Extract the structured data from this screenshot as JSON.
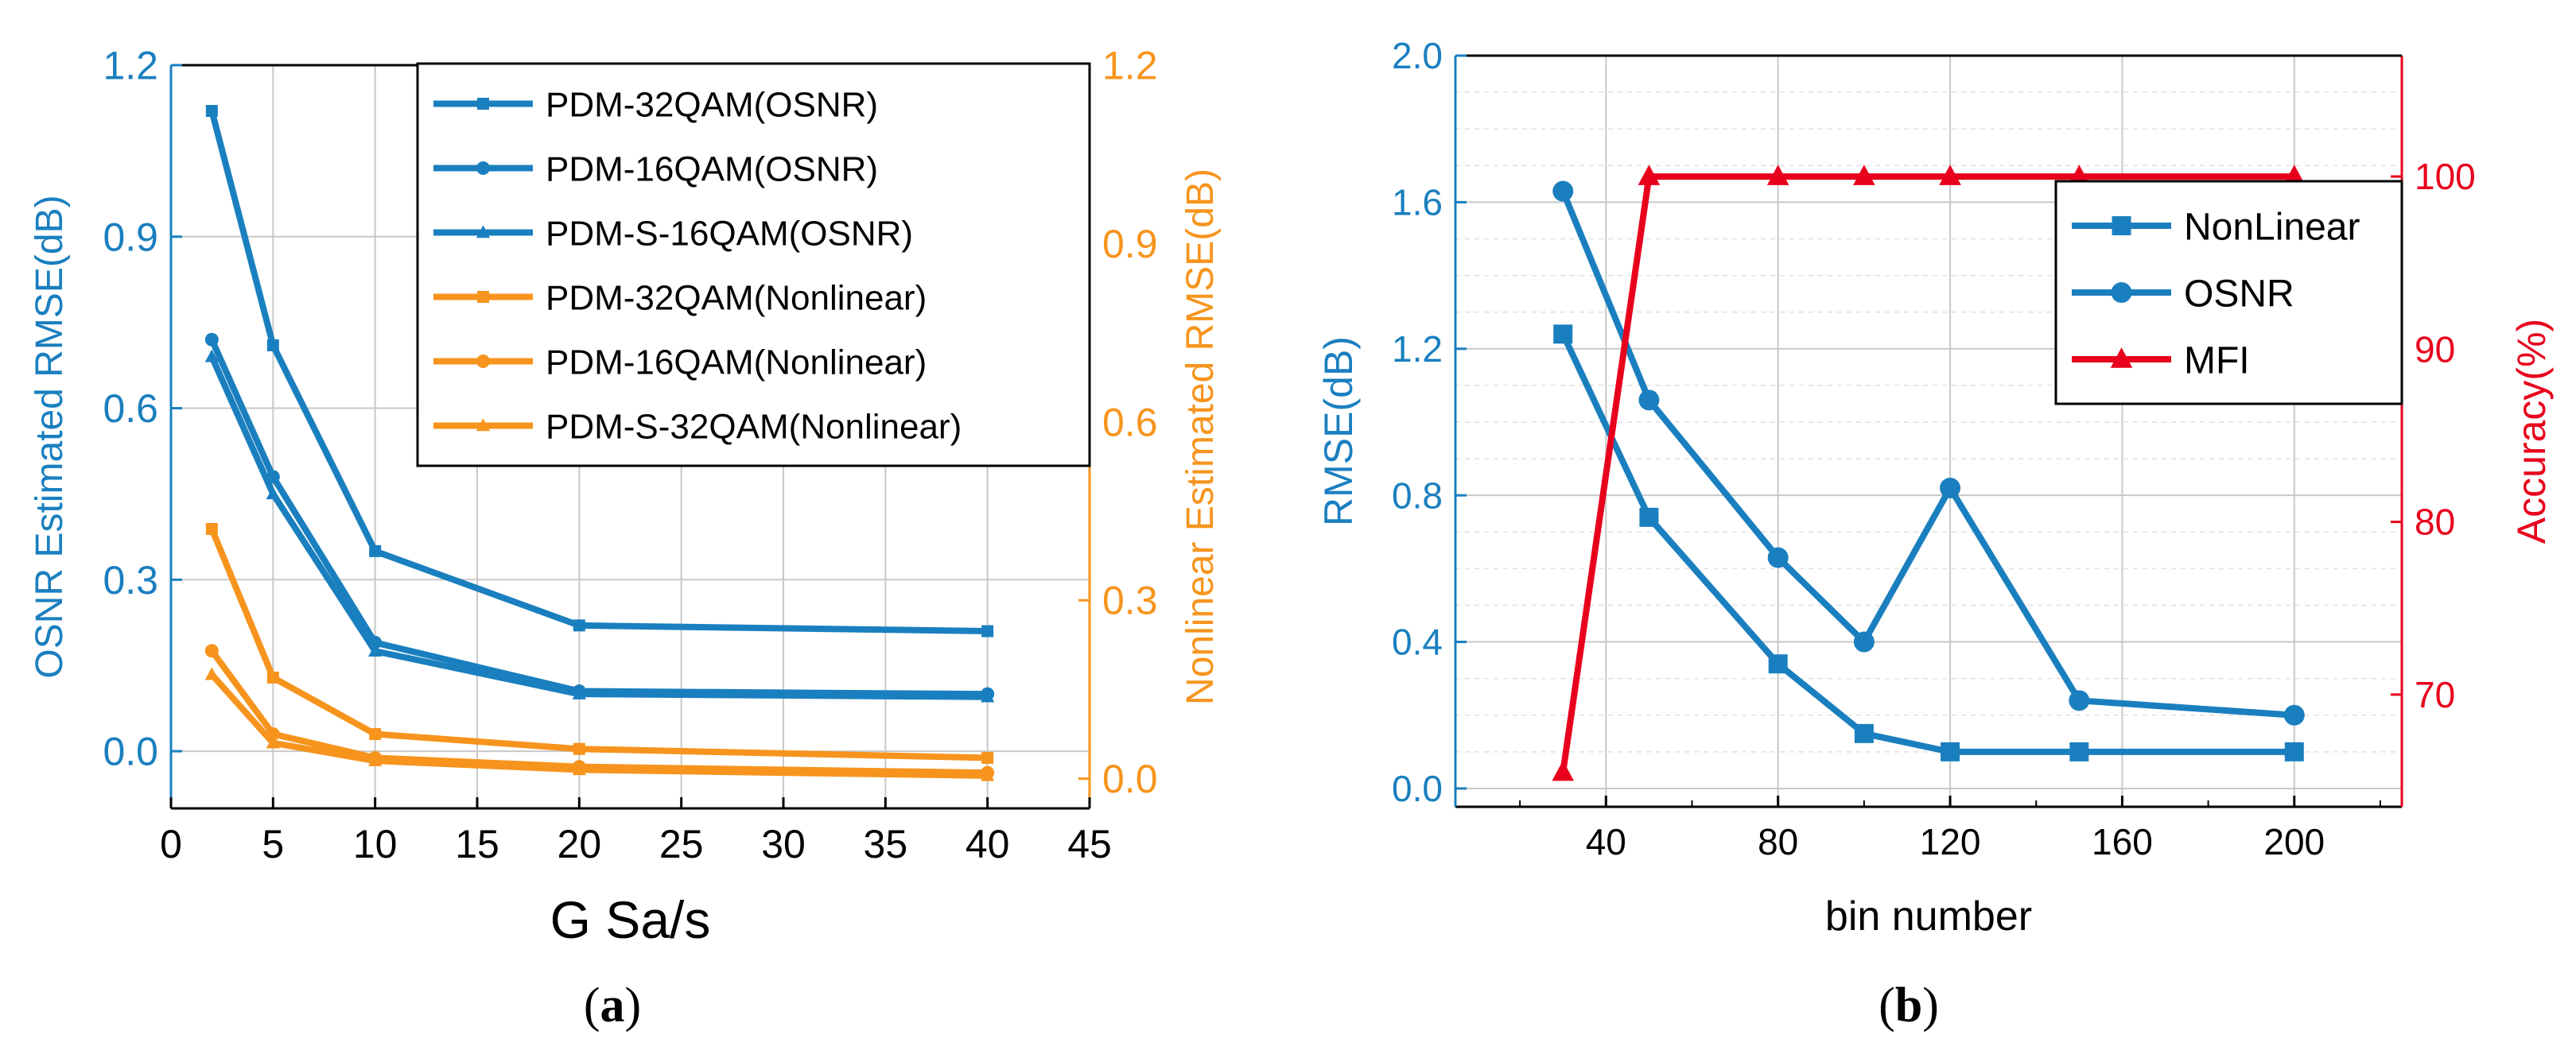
{
  "colors": {
    "osnr_blue": "#1a7fbf",
    "nonlinear_orange": "#f7941d",
    "mfi_red": "#e8001c",
    "axis_black": "#000000",
    "grid_gray": "#c8c8c8"
  },
  "panels": {
    "a": {
      "label": "a"
    },
    "b": {
      "label": "b"
    }
  },
  "chart_data": [
    {
      "id": "a",
      "type": "line",
      "xlabel": "G Sa/s",
      "ylabel_left": "OSNR Estimated RMSE(dB)",
      "ylabel_right": "Nonlinear Estimated RMSE(dB)",
      "xlim": [
        0,
        45
      ],
      "ylim_left": [
        -0.1,
        1.2
      ],
      "ylim_right": [
        -0.05,
        1.2
      ],
      "xticks": [
        "0",
        "5",
        "10",
        "15",
        "20",
        "25",
        "30",
        "35",
        "40",
        "45"
      ],
      "yticks_left": [
        "0.0",
        "0.3",
        "0.6",
        "0.9",
        "1.2"
      ],
      "yticks_right": [
        "0.0",
        "0.3",
        "0.6",
        "0.9",
        "1.2"
      ],
      "grid": true,
      "legend_position": "top-right",
      "x": [
        2,
        5,
        10,
        20,
        40
      ],
      "series": [
        {
          "name": "PDM-32QAM(OSNR)",
          "axis": "left",
          "group": "osnr",
          "marker": "square",
          "values": [
            1.12,
            0.71,
            0.35,
            0.22,
            0.21
          ]
        },
        {
          "name": "PDM-16QAM(OSNR)",
          "axis": "left",
          "group": "osnr",
          "marker": "circle",
          "values": [
            0.72,
            0.48,
            0.19,
            0.105,
            0.1
          ]
        },
        {
          "name": "PDM-S-16QAM(OSNR)",
          "axis": "left",
          "group": "osnr",
          "marker": "triangle",
          "values": [
            0.69,
            0.45,
            0.175,
            0.1,
            0.095
          ]
        },
        {
          "name": "PDM-32QAM(Nonlinear)",
          "axis": "right",
          "group": "nonlinear",
          "marker": "square",
          "values": [
            0.42,
            0.17,
            0.075,
            0.05,
            0.035
          ]
        },
        {
          "name": "PDM-16QAM(Nonlinear)",
          "axis": "right",
          "group": "nonlinear",
          "marker": "circle",
          "values": [
            0.215,
            0.075,
            0.035,
            0.02,
            0.01
          ]
        },
        {
          "name": "PDM-S-32QAM(Nonlinear)",
          "axis": "right",
          "group": "nonlinear",
          "marker": "triangle",
          "values": [
            0.175,
            0.06,
            0.03,
            0.015,
            0.005
          ]
        }
      ]
    },
    {
      "id": "b",
      "type": "line",
      "xlabel": "bin number",
      "ylabel_left": "RMSE(dB)",
      "ylabel_right": "Accuracy(%)",
      "xlim": [
        5,
        225
      ],
      "ylim_left": [
        -0.05,
        2.0
      ],
      "ylim_right": [
        63.5,
        107
      ],
      "xticks": [
        "40",
        "80",
        "120",
        "160",
        "200"
      ],
      "yticks_left": [
        "0.0",
        "0.4",
        "0.8",
        "1.2",
        "1.6",
        "2.0"
      ],
      "yticks_right": [
        "70",
        "80",
        "90",
        "100"
      ],
      "grid": true,
      "legend_position": "top-right",
      "x": [
        30,
        50,
        80,
        100,
        120,
        150,
        200
      ],
      "series": [
        {
          "name": "NonLinear",
          "axis": "left",
          "group": "blue",
          "marker": "square",
          "values": [
            1.24,
            0.74,
            0.34,
            0.15,
            0.1,
            0.1,
            0.1
          ]
        },
        {
          "name": "OSNR",
          "axis": "left",
          "group": "blue",
          "marker": "circle",
          "values": [
            1.63,
            1.06,
            0.63,
            0.4,
            0.82,
            0.24,
            0.2
          ]
        },
        {
          "name": "MFI",
          "axis": "right",
          "group": "red",
          "marker": "triangle",
          "values": [
            65.5,
            100,
            100,
            100,
            100,
            100,
            100
          ]
        }
      ]
    }
  ]
}
